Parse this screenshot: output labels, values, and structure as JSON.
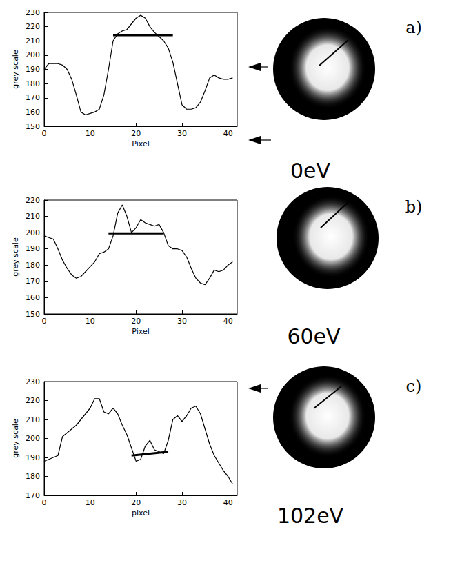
{
  "chart_data": [
    {
      "type": "line",
      "panel": "a)",
      "annotation": "0eV",
      "xlabel": "Pixel",
      "ylabel": "grey scale",
      "color": "#000000",
      "grid": false,
      "x": [
        0,
        1,
        2,
        3,
        4,
        5,
        6,
        7,
        8,
        9,
        10,
        11,
        12,
        13,
        14,
        15,
        16,
        17,
        18,
        19,
        20,
        21,
        22,
        23,
        24,
        25,
        26,
        27,
        28,
        29,
        30,
        31,
        32,
        33,
        34,
        35,
        36,
        37,
        38,
        39,
        40,
        41
      ],
      "values": [
        190,
        194,
        194,
        194,
        193,
        190,
        183,
        172,
        160,
        158,
        159,
        160,
        162,
        172,
        190,
        210,
        215,
        217,
        218,
        222,
        226,
        228,
        226,
        220,
        216,
        213,
        210,
        205,
        195,
        180,
        165,
        162,
        162,
        163,
        167,
        175,
        184,
        186,
        184,
        183,
        183,
        184
      ],
      "xlim": [
        0,
        42
      ],
      "ylim": [
        150,
        230
      ],
      "xticks": [
        0,
        10,
        20,
        30,
        40
      ],
      "yticks": [
        150,
        160,
        170,
        180,
        190,
        200,
        210,
        220,
        230
      ],
      "segment": {
        "x": [
          15,
          28
        ],
        "y": [
          214,
          214
        ]
      }
    },
    {
      "type": "line",
      "panel": "b)",
      "annotation": "60eV",
      "xlabel": "Pixel",
      "ylabel": "grey scale",
      "color": "#000000",
      "grid": false,
      "x": [
        0,
        1,
        2,
        3,
        4,
        5,
        6,
        7,
        8,
        9,
        10,
        11,
        12,
        13,
        14,
        15,
        16,
        17,
        18,
        19,
        20,
        21,
        22,
        23,
        24,
        25,
        26,
        27,
        28,
        29,
        30,
        31,
        32,
        33,
        34,
        35,
        36,
        37,
        38,
        39,
        40,
        41
      ],
      "values": [
        198,
        197,
        196,
        190,
        183,
        178,
        174,
        172,
        173,
        176,
        179,
        182,
        187,
        188,
        190,
        198,
        212,
        217,
        210,
        200,
        203,
        208,
        206,
        205,
        204,
        205,
        200,
        192,
        190,
        190,
        189,
        185,
        178,
        172,
        169,
        168,
        172,
        177,
        176,
        177,
        180,
        182
      ],
      "xlim": [
        0,
        42
      ],
      "ylim": [
        150,
        220
      ],
      "xticks": [
        0,
        10,
        20,
        30,
        40
      ],
      "yticks": [
        150,
        160,
        170,
        180,
        190,
        200,
        210,
        220
      ],
      "segment": {
        "x": [
          14,
          26
        ],
        "y": [
          199.5,
          199.5
        ]
      }
    },
    {
      "type": "line",
      "panel": "c)",
      "annotation": "102eV",
      "xlabel": "pixel",
      "ylabel": "grey scale",
      "color": "#000000",
      "grid": false,
      "x": [
        0,
        1,
        2,
        3,
        4,
        5,
        6,
        7,
        8,
        9,
        10,
        11,
        12,
        13,
        14,
        15,
        16,
        17,
        18,
        19,
        20,
        21,
        22,
        23,
        24,
        25,
        26,
        27,
        28,
        29,
        30,
        31,
        32,
        33,
        34,
        35,
        36,
        37,
        38,
        39,
        40,
        41
      ],
      "values": [
        188,
        189,
        190,
        191,
        201,
        203,
        205,
        207,
        210,
        213,
        216,
        221,
        221,
        214,
        213,
        216,
        213,
        207,
        202,
        195,
        188,
        189,
        196,
        199,
        194,
        193,
        192,
        199,
        210,
        212,
        209,
        212,
        216,
        217,
        213,
        205,
        197,
        191,
        187,
        183,
        180,
        176
      ],
      "xlim": [
        0,
        42
      ],
      "ylim": [
        170,
        230
      ],
      "xticks": [
        0,
        10,
        20,
        30,
        40
      ],
      "yticks": [
        170,
        180,
        190,
        200,
        210,
        220,
        230
      ],
      "segment": {
        "x": [
          19,
          27
        ],
        "y": [
          191,
          193
        ]
      }
    }
  ]
}
